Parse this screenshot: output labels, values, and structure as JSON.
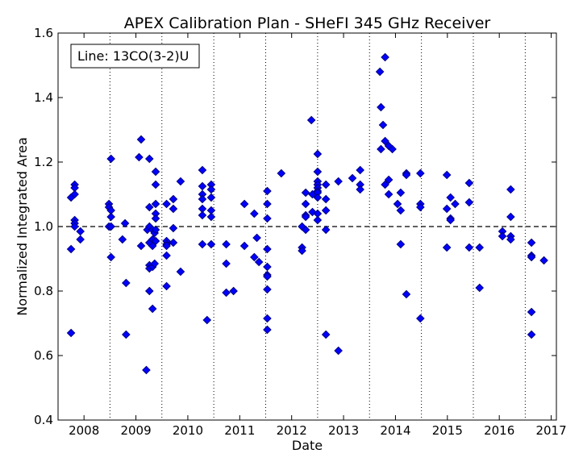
{
  "chart_data": {
    "type": "scatter",
    "title": "APEX Calibration Plan - SHeFI 345 GHz Receiver",
    "xlabel": "Date",
    "ylabel": "Normalized Integrated Area",
    "legend_text": "Line: 13CO(3-2)U",
    "legend_placement": "top-left",
    "xlim": [
      2007.5,
      2017.1
    ],
    "ylim": [
      0.4,
      1.6
    ],
    "x_ticks": [
      "2008",
      "2009",
      "2010",
      "2011",
      "2012",
      "2013",
      "2014",
      "2015",
      "2016",
      "2017"
    ],
    "y_ticks": [
      "0.4",
      "0.6",
      "0.8",
      "1.0",
      "1.2",
      "1.4",
      "1.6"
    ],
    "reference_line": 1.0,
    "vertical_dotted_lines": [
      2008.5,
      2009.5,
      2010.5,
      2011.5,
      2012.5,
      2013.5,
      2014.5,
      2015.5,
      2016.5
    ],
    "marker_color": "#0000ff",
    "marker_edge": "#000080",
    "series": [
      {
        "name": "13CO(3-2)U",
        "points": [
          [
            2007.75,
            0.93
          ],
          [
            2007.75,
            0.67
          ],
          [
            2007.75,
            1.09
          ],
          [
            2007.82,
            1.13
          ],
          [
            2007.82,
            1.12
          ],
          [
            2007.82,
            1.1
          ],
          [
            2007.82,
            1.02
          ],
          [
            2007.82,
            1.01
          ],
          [
            2007.82,
            1.0
          ],
          [
            2007.93,
            0.985
          ],
          [
            2007.93,
            0.96
          ],
          [
            2008.48,
            1.07
          ],
          [
            2008.48,
            1.06
          ],
          [
            2008.48,
            1.0
          ],
          [
            2008.52,
            1.21
          ],
          [
            2008.52,
            1.05
          ],
          [
            2008.52,
            1.03
          ],
          [
            2008.52,
            0.905
          ],
          [
            2008.52,
            1.0
          ],
          [
            2008.74,
            0.96
          ],
          [
            2008.79,
            1.01
          ],
          [
            2008.81,
            0.825
          ],
          [
            2008.81,
            0.665
          ],
          [
            2009.06,
            1.215
          ],
          [
            2009.1,
            1.27
          ],
          [
            2009.1,
            0.94
          ],
          [
            2009.2,
            0.555
          ],
          [
            2009.22,
            0.99
          ],
          [
            2009.26,
            1.21
          ],
          [
            2009.26,
            1.06
          ],
          [
            2009.26,
            1.0
          ],
          [
            2009.26,
            0.95
          ],
          [
            2009.26,
            0.88
          ],
          [
            2009.26,
            0.87
          ],
          [
            2009.26,
            0.8
          ],
          [
            2009.32,
            0.745
          ],
          [
            2009.32,
            0.94
          ],
          [
            2009.32,
            0.96
          ],
          [
            2009.32,
            0.99
          ],
          [
            2009.32,
            0.875
          ],
          [
            2009.36,
            0.885
          ],
          [
            2009.36,
            0.98
          ],
          [
            2009.38,
            1.17
          ],
          [
            2009.38,
            1.13
          ],
          [
            2009.38,
            1.07
          ],
          [
            2009.38,
            1.04
          ],
          [
            2009.38,
            1.025
          ],
          [
            2009.38,
            0.99
          ],
          [
            2009.38,
            0.955
          ],
          [
            2009.59,
            1.07
          ],
          [
            2009.59,
            0.955
          ],
          [
            2009.59,
            0.945
          ],
          [
            2009.59,
            0.94
          ],
          [
            2009.59,
            0.91
          ],
          [
            2009.59,
            0.815
          ],
          [
            2009.72,
            1.085
          ],
          [
            2009.72,
            1.055
          ],
          [
            2009.72,
            0.995
          ],
          [
            2009.72,
            0.95
          ],
          [
            2009.86,
            1.14
          ],
          [
            2009.86,
            0.86
          ],
          [
            2010.28,
            1.175
          ],
          [
            2010.28,
            1.125
          ],
          [
            2010.28,
            1.1
          ],
          [
            2010.28,
            1.085
          ],
          [
            2010.28,
            1.055
          ],
          [
            2010.28,
            1.035
          ],
          [
            2010.28,
            0.945
          ],
          [
            2010.37,
            0.71
          ],
          [
            2010.45,
            1.13
          ],
          [
            2010.45,
            1.115
          ],
          [
            2010.45,
            1.09
          ],
          [
            2010.45,
            1.05
          ],
          [
            2010.45,
            1.03
          ],
          [
            2010.45,
            0.945
          ],
          [
            2010.74,
            0.945
          ],
          [
            2010.74,
            0.885
          ],
          [
            2010.74,
            0.795
          ],
          [
            2010.88,
            0.8
          ],
          [
            2011.09,
            1.07
          ],
          [
            2011.09,
            0.94
          ],
          [
            2011.28,
            1.04
          ],
          [
            2011.28,
            0.905
          ],
          [
            2011.33,
            0.965
          ],
          [
            2011.37,
            0.89
          ],
          [
            2011.53,
            1.11
          ],
          [
            2011.53,
            1.07
          ],
          [
            2011.53,
            1.025
          ],
          [
            2011.53,
            0.93
          ],
          [
            2011.53,
            0.875
          ],
          [
            2011.53,
            0.85
          ],
          [
            2011.53,
            0.845
          ],
          [
            2011.53,
            0.805
          ],
          [
            2011.53,
            0.715
          ],
          [
            2011.53,
            0.68
          ],
          [
            2011.8,
            1.165
          ],
          [
            2012.2,
            1.0
          ],
          [
            2012.2,
            0.935
          ],
          [
            2012.2,
            0.925
          ],
          [
            2012.27,
            1.105
          ],
          [
            2012.27,
            1.07
          ],
          [
            2012.27,
            1.035
          ],
          [
            2012.27,
            1.03
          ],
          [
            2012.27,
            0.99
          ],
          [
            2012.38,
            1.33
          ],
          [
            2012.4,
            1.1
          ],
          [
            2012.4,
            1.045
          ],
          [
            2012.5,
            1.225
          ],
          [
            2012.5,
            1.17
          ],
          [
            2012.5,
            1.14
          ],
          [
            2012.5,
            1.13
          ],
          [
            2012.5,
            1.12
          ],
          [
            2012.5,
            1.11
          ],
          [
            2012.5,
            1.105
          ],
          [
            2012.5,
            1.09
          ],
          [
            2012.5,
            1.02
          ],
          [
            2012.5,
            1.04
          ],
          [
            2012.66,
            1.13
          ],
          [
            2012.66,
            1.085
          ],
          [
            2012.66,
            1.05
          ],
          [
            2012.66,
            0.99
          ],
          [
            2012.66,
            0.665
          ],
          [
            2012.9,
            1.14
          ],
          [
            2012.9,
            0.615
          ],
          [
            2013.17,
            1.15
          ],
          [
            2013.32,
            1.175
          ],
          [
            2013.32,
            1.13
          ],
          [
            2013.32,
            1.115
          ],
          [
            2013.7,
            1.48
          ],
          [
            2013.72,
            1.37
          ],
          [
            2013.72,
            1.24
          ],
          [
            2013.76,
            1.315
          ],
          [
            2013.8,
            1.525
          ],
          [
            2013.8,
            1.265
          ],
          [
            2013.8,
            1.13
          ],
          [
            2013.87,
            1.25
          ],
          [
            2013.87,
            1.145
          ],
          [
            2013.87,
            1.1
          ],
          [
            2013.94,
            1.24
          ],
          [
            2014.04,
            1.07
          ],
          [
            2014.1,
            1.105
          ],
          [
            2014.1,
            1.05
          ],
          [
            2014.1,
            0.945
          ],
          [
            2014.21,
            1.165
          ],
          [
            2014.21,
            1.16
          ],
          [
            2014.21,
            0.79
          ],
          [
            2014.48,
            1.165
          ],
          [
            2014.48,
            1.07
          ],
          [
            2014.48,
            1.06
          ],
          [
            2014.48,
            0.715
          ],
          [
            2014.99,
            1.16
          ],
          [
            2014.99,
            1.055
          ],
          [
            2014.99,
            0.935
          ],
          [
            2015.06,
            1.09
          ],
          [
            2015.06,
            1.025
          ],
          [
            2015.06,
            1.02
          ],
          [
            2015.15,
            1.07
          ],
          [
            2015.42,
            1.135
          ],
          [
            2015.42,
            1.075
          ],
          [
            2015.42,
            0.935
          ],
          [
            2015.62,
            0.935
          ],
          [
            2015.62,
            0.81
          ],
          [
            2016.06,
            0.985
          ],
          [
            2016.06,
            0.97
          ],
          [
            2016.22,
            1.115
          ],
          [
            2016.22,
            1.03
          ],
          [
            2016.22,
            0.97
          ],
          [
            2016.22,
            0.96
          ],
          [
            2016.62,
            0.95
          ],
          [
            2016.62,
            0.91
          ],
          [
            2016.62,
            0.905
          ],
          [
            2016.62,
            0.735
          ],
          [
            2016.62,
            0.665
          ],
          [
            2016.86,
            0.895
          ]
        ]
      }
    ]
  }
}
